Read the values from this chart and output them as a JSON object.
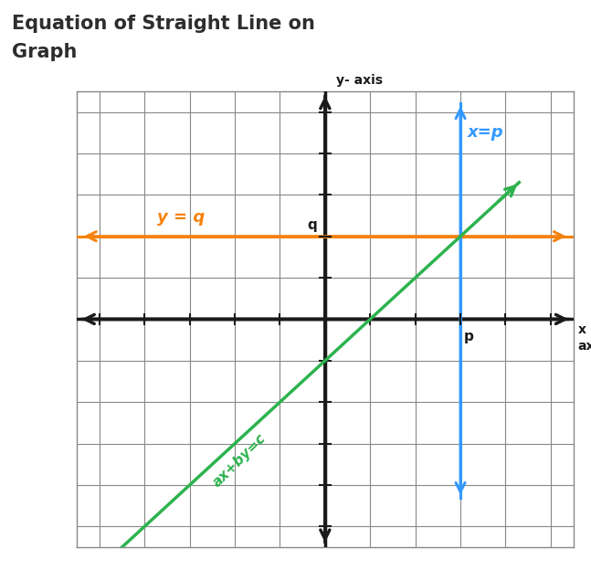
{
  "title_line1": "Equation of Straight Line on",
  "title_line2": "Graph",
  "title_fontsize": 15,
  "title_color": "#2d2d2d",
  "background_color": "#ffffff",
  "grid_color": "#888888",
  "axis_color": "#1a1a1a",
  "x_label": "x\naxis",
  "y_label": "y- axis",
  "orange_line_color": "#f5820d",
  "orange_line_label": "y = q",
  "orange_line_y": 2,
  "blue_line_color": "#3399ff",
  "blue_line_label": "x=p",
  "blue_line_x": 3,
  "green_line_color": "#2db34e",
  "green_line_label": "ax+by=c",
  "green_slope": 1.0,
  "green_intercept": -1.0,
  "p_label": "p",
  "q_label": "q",
  "n_cols": 11,
  "n_rows": 11,
  "xlim": [
    -5.5,
    5.5
  ],
  "ylim": [
    -5.5,
    5.5
  ],
  "origin_x": 0,
  "origin_y": 0
}
